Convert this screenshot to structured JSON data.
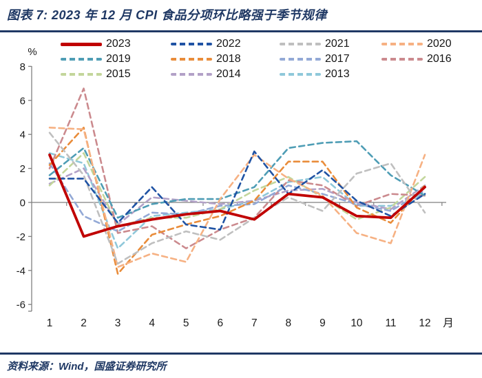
{
  "title": "图表 7:  2023 年 12 月 CPI 食品分项环比略强于季节规律",
  "footer": {
    "source": "资料来源：Wind，国盛证券研究所"
  },
  "colors": {
    "accent_blue": "#1F3864",
    "axis_gray": "#7F7F7F",
    "text_black": "#1a1a1a"
  },
  "chart_data": {
    "type": "line",
    "title": "2023 年 12 月 CPI 食品分项环比略强于季节规律",
    "ylabel": "%",
    "xlabel": "月",
    "x": [
      1,
      2,
      3,
      4,
      5,
      6,
      7,
      8,
      9,
      10,
      11,
      12
    ],
    "ylim": [
      -6,
      8
    ],
    "yticks": [
      8,
      6,
      4,
      2,
      0,
      -2,
      -4,
      -6
    ],
    "grid": "zero-line-only",
    "legend_position": "top",
    "legend_rows": [
      [
        "2023",
        "2022",
        "2021",
        "2020"
      ],
      [
        "2019",
        "2018",
        "2017",
        "2016"
      ],
      [
        "2015",
        "2014",
        "2013"
      ]
    ],
    "series": [
      {
        "name": "2023",
        "color": "#C00000",
        "style": "solid",
        "width": 3.8,
        "values": [
          2.8,
          -2.0,
          -1.4,
          -1.0,
          -0.7,
          -0.5,
          -1.0,
          0.5,
          0.3,
          -0.8,
          -0.9,
          0.9
        ]
      },
      {
        "name": "2022",
        "color": "#2053A4",
        "style": "dashed",
        "width": 2.6,
        "values": [
          1.4,
          1.4,
          -1.2,
          0.9,
          -1.3,
          -1.6,
          3.0,
          0.5,
          1.9,
          0.1,
          -0.8,
          0.5
        ]
      },
      {
        "name": "2021",
        "color": "#BFBFBF",
        "style": "dashed",
        "width": 2.6,
        "values": [
          4.1,
          1.6,
          -3.6,
          -2.4,
          -1.7,
          -2.2,
          -0.9,
          0.3,
          -0.5,
          1.7,
          2.3,
          -0.6
        ]
      },
      {
        "name": "2020",
        "color": "#F6B183",
        "style": "dashed",
        "width": 2.6,
        "values": [
          4.4,
          4.3,
          -3.8,
          -3.0,
          -3.5,
          0.2,
          2.8,
          1.4,
          0.4,
          -1.8,
          -2.4,
          2.8
        ]
      },
      {
        "name": "2019",
        "color": "#4E9DB5",
        "style": "dashed",
        "width": 2.6,
        "values": [
          1.6,
          3.2,
          -0.9,
          -0.1,
          0.2,
          0.2,
          0.9,
          3.2,
          3.5,
          3.6,
          1.6,
          0.4
        ]
      },
      {
        "name": "2018",
        "color": "#E98C3A",
        "style": "dashed",
        "width": 2.6,
        "values": [
          2.2,
          4.4,
          -4.2,
          -1.9,
          -1.3,
          -0.8,
          0.1,
          2.4,
          2.4,
          -0.3,
          -1.2,
          1.0
        ]
      },
      {
        "name": "2017",
        "color": "#93A9D6",
        "style": "dashed",
        "width": 2.6,
        "values": [
          2.3,
          -0.8,
          -1.7,
          -0.6,
          -0.7,
          -0.2,
          -0.1,
          1.0,
          0.5,
          -0.1,
          -0.5,
          0.7
        ]
      },
      {
        "name": "2016",
        "color": "#CB8A8E",
        "style": "dashed",
        "width": 2.6,
        "values": [
          2.0,
          6.7,
          -1.8,
          -1.4,
          -2.7,
          -1.6,
          -0.9,
          1.3,
          1.0,
          -0.2,
          0.5,
          0.4
        ]
      },
      {
        "name": "2015",
        "color": "#C3D69B",
        "style": "dashed",
        "width": 2.6,
        "values": [
          1.0,
          2.9,
          -1.4,
          -0.9,
          -0.9,
          -0.4,
          0.7,
          1.5,
          0.3,
          -1.0,
          -0.3,
          1.5
        ]
      },
      {
        "name": "2014",
        "color": "#B2A1C7",
        "style": "dashed",
        "width": 2.6,
        "values": [
          1.1,
          2.0,
          -1.3,
          0.3,
          0.1,
          -0.1,
          0.1,
          0.7,
          0.8,
          0.0,
          -0.4,
          1.0
        ]
      },
      {
        "name": "2013",
        "color": "#8FC8DA",
        "style": "dashed",
        "width": 2.6,
        "values": [
          2.9,
          2.3,
          -2.7,
          -0.8,
          -0.6,
          -0.4,
          0.1,
          1.2,
          1.5,
          -0.2,
          -0.2,
          0.5
        ]
      }
    ]
  }
}
